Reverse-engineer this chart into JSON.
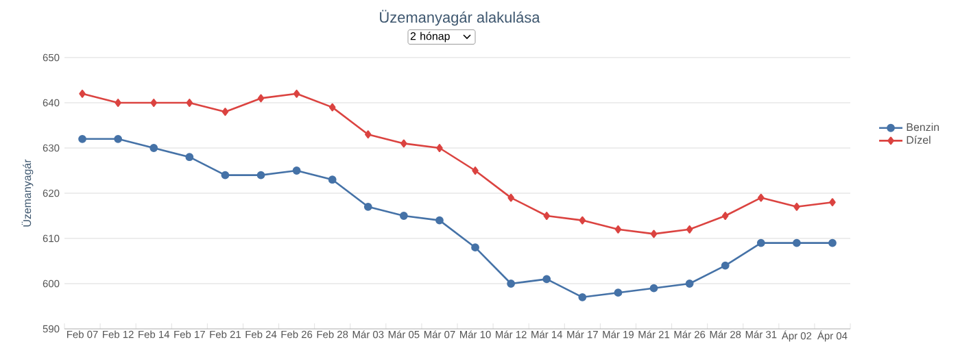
{
  "chart_data": {
    "type": "line",
    "title": "Üzemanyagár alakulása",
    "subtitle": "2 hónap",
    "ylabel": "Üzemanyagár",
    "categories": [
      "Feb 07",
      "Feb 12",
      "Feb 14",
      "Feb 17",
      "Feb 21",
      "Feb 24",
      "Feb 26",
      "Feb 28",
      "Már 03",
      "Már 05",
      "Már 07",
      "Már 10",
      "Már 12",
      "Már 14",
      "Már 17",
      "Már 19",
      "Már 21",
      "Már 26",
      "Már 28",
      "Már 31",
      "Ápr 02",
      "Ápr 04"
    ],
    "series": [
      {
        "name": "Benzin",
        "color": "#4572a7",
        "marker": "circle",
        "values": [
          632,
          632,
          630,
          628,
          624,
          624,
          625,
          623,
          617,
          615,
          614,
          608,
          600,
          601,
          597,
          598,
          599,
          600,
          604,
          609,
          609,
          609
        ]
      },
      {
        "name": "Dízel",
        "color": "#db4340",
        "marker": "diamond",
        "values": [
          642,
          640,
          640,
          640,
          638,
          641,
          642,
          639,
          633,
          631,
          630,
          625,
          619,
          615,
          614,
          612,
          611,
          612,
          615,
          619,
          617,
          618
        ]
      }
    ],
    "ylim": [
      590,
      650
    ],
    "yticks": [
      590,
      600,
      610,
      620,
      630,
      640,
      650
    ],
    "grid": "y",
    "legend": "right",
    "line_style": "solid"
  }
}
